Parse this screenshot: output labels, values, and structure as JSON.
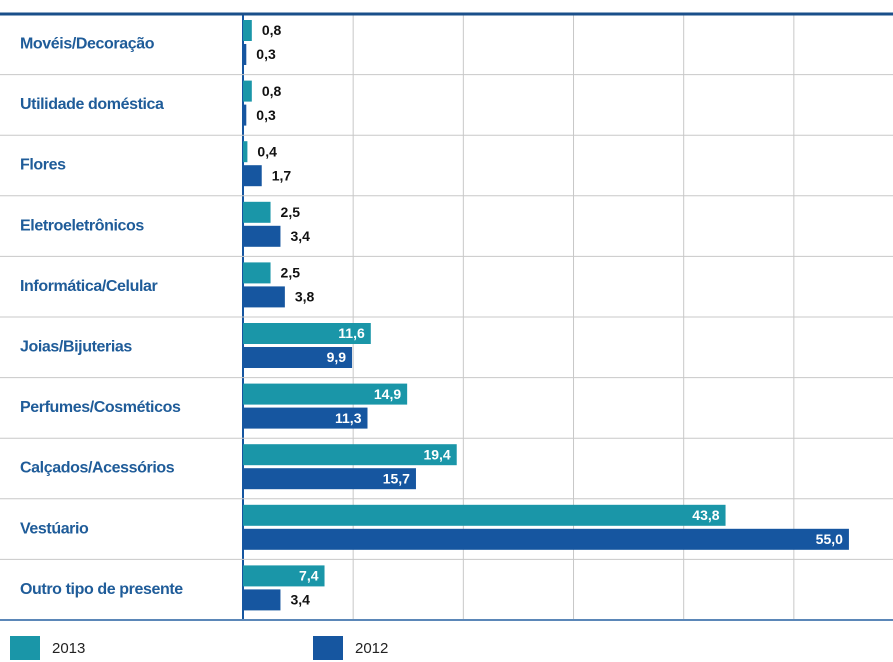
{
  "chart_data": {
    "type": "hbar",
    "categories": [
      "Movéis/Decoração",
      "Utilidade doméstica",
      "Flores",
      "Eletroeletrônicos",
      "Informática/Celular",
      "Joias/Bijuterias",
      "Perfumes/Cosméticos",
      "Calçados/Acessórios",
      "Vestúario",
      "Outro tipo de presente"
    ],
    "series": [
      {
        "name": "2013",
        "color": "#1a96a8",
        "values": [
          0.8,
          0.8,
          0.4,
          2.5,
          2.5,
          11.6,
          14.9,
          19.4,
          43.8,
          7.4
        ],
        "value_labels": [
          "0,8",
          "0,8",
          "0,4",
          "2,5",
          "2,5",
          "11,6",
          "14,9",
          "19,4",
          "43,8",
          "7,4"
        ]
      },
      {
        "name": "2012",
        "color": "#1656a0",
        "values": [
          0.3,
          0.3,
          1.7,
          3.4,
          3.8,
          9.9,
          11.3,
          15.7,
          55.0,
          3.4
        ],
        "value_labels": [
          "0,3",
          "0,3",
          "1,7",
          "3,4",
          "3,8",
          "9,9",
          "11,3",
          "15,7",
          "55,0",
          "3,4"
        ]
      }
    ],
    "xlim": [
      0,
      59
    ],
    "xticks": [
      0,
      10,
      20,
      30,
      40,
      50
    ],
    "grid": true,
    "legend": "bottom"
  }
}
